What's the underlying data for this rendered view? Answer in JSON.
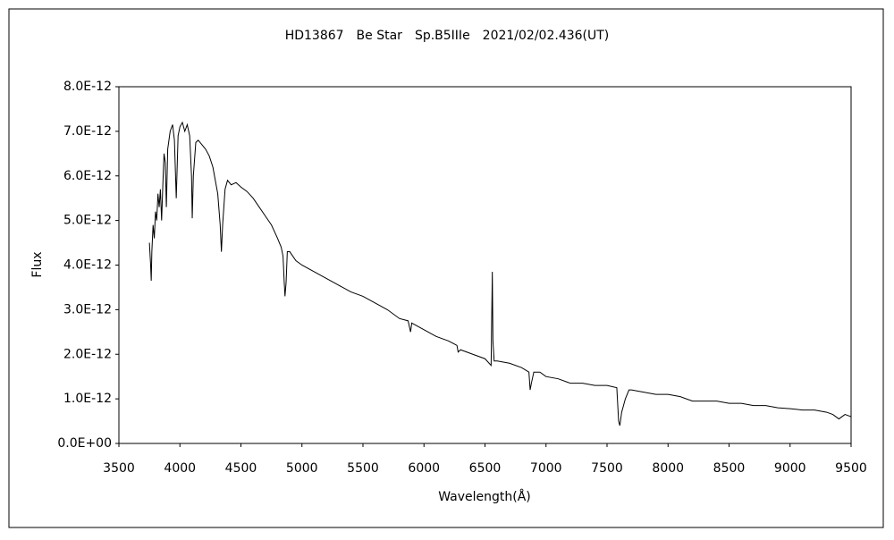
{
  "chart_data": {
    "type": "line",
    "title": "HD13867　Be Star　Sp.B5IIIe　2021/02/02.436(UT)",
    "xlabel": "Wavelength(Å)",
    "ylabel": "Flux",
    "xlim": [
      3500,
      9500
    ],
    "xticks": [
      3500,
      4000,
      4500,
      5000,
      5500,
      6000,
      6500,
      7000,
      7500,
      8000,
      8500,
      9000,
      9500
    ],
    "ylim": [
      0,
      8e-12
    ],
    "yticks": [
      {
        "value": 0,
        "label": "0.0E+00"
      },
      {
        "value": 1e-12,
        "label": "1.0E-12"
      },
      {
        "value": 2e-12,
        "label": "2.0E-12"
      },
      {
        "value": 3e-12,
        "label": "3.0E-12"
      },
      {
        "value": 4e-12,
        "label": "4.0E-12"
      },
      {
        "value": 5e-12,
        "label": "5.0E-12"
      },
      {
        "value": 6e-12,
        "label": "6.0E-12"
      },
      {
        "value": 7e-12,
        "label": "7.0E-12"
      },
      {
        "value": 8e-12,
        "label": "8.0E-12"
      }
    ],
    "color": "#000000",
    "x": [
      3750,
      3760,
      3765,
      3770,
      3780,
      3790,
      3800,
      3810,
      3820,
      3830,
      3840,
      3850,
      3860,
      3870,
      3880,
      3889,
      3900,
      3920,
      3940,
      3955,
      3970,
      3985,
      4000,
      4020,
      4040,
      4060,
      4080,
      4095,
      4101,
      4110,
      4130,
      4150,
      4180,
      4210,
      4240,
      4270,
      4290,
      4310,
      4330,
      4340,
      4350,
      4370,
      4390,
      4420,
      4460,
      4500,
      4550,
      4600,
      4650,
      4700,
      4750,
      4800,
      4830,
      4845,
      4855,
      4861,
      4870,
      4880,
      4900,
      4950,
      5000,
      5100,
      5200,
      5300,
      5400,
      5500,
      5600,
      5700,
      5800,
      5870,
      5890,
      5900,
      6000,
      6100,
      6200,
      6270,
      6280,
      6300,
      6400,
      6500,
      6550,
      6560,
      6565,
      6575,
      6600,
      6700,
      6800,
      6860,
      6870,
      6880,
      6900,
      6950,
      7000,
      7100,
      7200,
      7300,
      7400,
      7500,
      7580,
      7595,
      7605,
      7620,
      7650,
      7680,
      7700,
      7800,
      7900,
      8000,
      8100,
      8200,
      8300,
      8400,
      8500,
      8600,
      8700,
      8800,
      8900,
      9000,
      9100,
      9200,
      9300,
      9350,
      9400,
      9450,
      9500
    ],
    "values": [
      4.5e-12,
      4e-12,
      3.65e-12,
      4.3e-12,
      4.9e-12,
      4.6e-12,
      5.2e-12,
      5e-12,
      5.6e-12,
      5.3e-12,
      5.7e-12,
      5e-12,
      5.8e-12,
      6.5e-12,
      6.3e-12,
      5.3e-12,
      6.6e-12,
      7e-12,
      7.15e-12,
      6.8e-12,
      5.5e-12,
      6.9e-12,
      7.1e-12,
      7.2e-12,
      7e-12,
      7.15e-12,
      6.9e-12,
      6e-12,
      5.05e-12,
      6e-12,
      6.75e-12,
      6.8e-12,
      6.7e-12,
      6.6e-12,
      6.45e-12,
      6.2e-12,
      5.9e-12,
      5.6e-12,
      4.9e-12,
      4.3e-12,
      4.9e-12,
      5.7e-12,
      5.9e-12,
      5.8e-12,
      5.85e-12,
      5.75e-12,
      5.65e-12,
      5.5e-12,
      5.3e-12,
      5.1e-12,
      4.9e-12,
      4.6e-12,
      4.4e-12,
      4.2e-12,
      3.6e-12,
      3.3e-12,
      3.6e-12,
      4.3e-12,
      4.3e-12,
      4.1e-12,
      4e-12,
      3.85e-12,
      3.7e-12,
      3.55e-12,
      3.4e-12,
      3.3e-12,
      3.15e-12,
      3e-12,
      2.8e-12,
      2.75e-12,
      2.5e-12,
      2.7e-12,
      2.55e-12,
      2.4e-12,
      2.3e-12,
      2.2e-12,
      2.05e-12,
      2.1e-12,
      2e-12,
      1.9e-12,
      1.75e-12,
      3.85e-12,
      2.3e-12,
      1.85e-12,
      1.85e-12,
      1.8e-12,
      1.7e-12,
      1.6e-12,
      1.2e-12,
      1.35e-12,
      1.6e-12,
      1.6e-12,
      1.5e-12,
      1.45e-12,
      1.35e-12,
      1.35e-12,
      1.3e-12,
      1.3e-12,
      1.25e-12,
      5e-13,
      4e-13,
      7e-13,
      1e-12,
      1.2e-12,
      1.2e-12,
      1.15e-12,
      1.1e-12,
      1.1e-12,
      1.05e-12,
      9.5e-13,
      9.5e-13,
      9.5e-13,
      9e-13,
      9e-13,
      8.5e-13,
      8.5e-13,
      8e-13,
      7.8e-13,
      7.5e-13,
      7.5e-13,
      7e-13,
      6.5e-13,
      5.5e-13,
      6.5e-13,
      6e-13
    ]
  }
}
